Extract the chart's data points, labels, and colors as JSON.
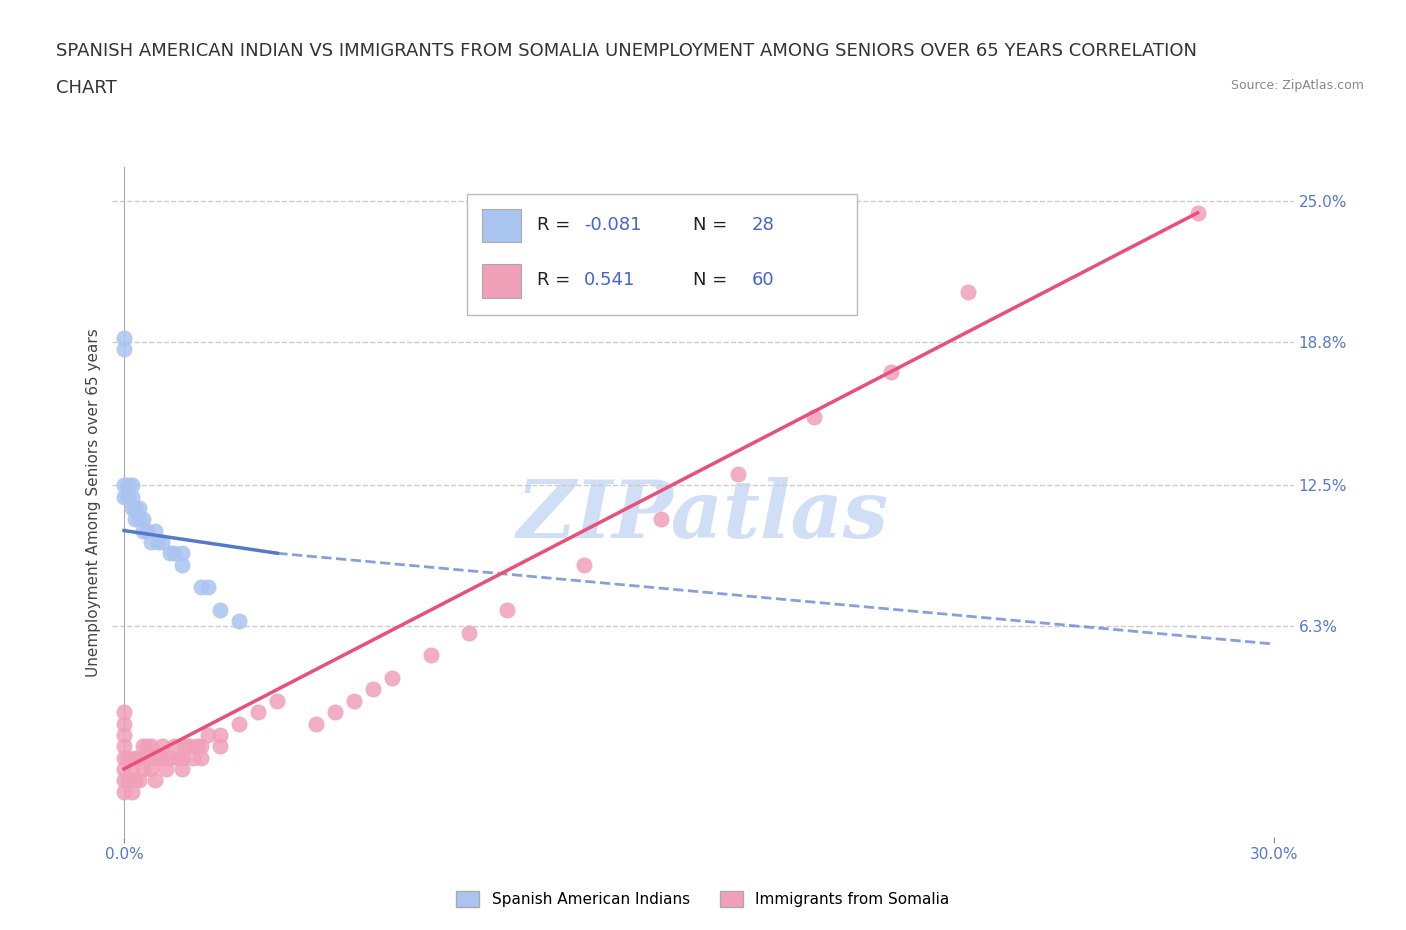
{
  "title_line1": "SPANISH AMERICAN INDIAN VS IMMIGRANTS FROM SOMALIA UNEMPLOYMENT AMONG SENIORS OVER 65 YEARS CORRELATION",
  "title_line2": "CHART",
  "source": "Source: ZipAtlas.com",
  "ylabel": "Unemployment Among Seniors over 65 years",
  "xlim": [
    -0.003,
    0.305
  ],
  "ylim": [
    -0.03,
    0.265
  ],
  "right_yticks": [
    0.0,
    0.063,
    0.125,
    0.188,
    0.25
  ],
  "right_yticklabels": [
    "",
    "6.3%",
    "12.5%",
    "18.8%",
    "25.0%"
  ],
  "series1_color": "#aac4f0",
  "series2_color": "#f0a0b8",
  "series1_label": "Spanish American Indians",
  "series2_label": "Immigrants from Somalia",
  "trend1_color": "#5577cc",
  "trend2_color": "#e8507a",
  "watermark_text": "ZIPatlas",
  "watermark_color": "#d0dff5",
  "grid_color": "#cccccc",
  "background_color": "#ffffff",
  "title_fontsize": 13,
  "axis_label_fontsize": 11,
  "tick_fontsize": 11,
  "tick_color": "#5577cc",
  "series1_x": [
    0.0,
    0.0,
    0.0,
    0.0,
    0.001,
    0.001,
    0.002,
    0.002,
    0.002,
    0.003,
    0.003,
    0.004,
    0.004,
    0.005,
    0.005,
    0.006,
    0.007,
    0.008,
    0.009,
    0.01,
    0.012,
    0.013,
    0.015,
    0.015,
    0.02,
    0.022,
    0.025,
    0.03
  ],
  "series1_y": [
    0.19,
    0.185,
    0.125,
    0.12,
    0.125,
    0.12,
    0.125,
    0.12,
    0.115,
    0.115,
    0.11,
    0.115,
    0.11,
    0.11,
    0.105,
    0.105,
    0.1,
    0.105,
    0.1,
    0.1,
    0.095,
    0.095,
    0.095,
    0.09,
    0.08,
    0.08,
    0.07,
    0.065
  ],
  "series2_x": [
    0.0,
    0.0,
    0.0,
    0.0,
    0.0,
    0.0,
    0.0,
    0.0,
    0.001,
    0.001,
    0.002,
    0.002,
    0.003,
    0.003,
    0.004,
    0.004,
    0.005,
    0.005,
    0.006,
    0.006,
    0.007,
    0.007,
    0.008,
    0.008,
    0.009,
    0.01,
    0.01,
    0.011,
    0.012,
    0.013,
    0.014,
    0.015,
    0.015,
    0.016,
    0.017,
    0.018,
    0.019,
    0.02,
    0.02,
    0.022,
    0.025,
    0.025,
    0.03,
    0.035,
    0.04,
    0.05,
    0.055,
    0.06,
    0.065,
    0.07,
    0.08,
    0.09,
    0.1,
    0.12,
    0.14,
    0.16,
    0.18,
    0.2,
    0.22,
    0.28
  ],
  "series2_y": [
    -0.01,
    -0.005,
    0.0,
    0.005,
    0.01,
    0.015,
    0.02,
    0.025,
    -0.005,
    0.005,
    -0.01,
    0.0,
    -0.005,
    0.005,
    -0.005,
    0.005,
    0.0,
    0.01,
    0.005,
    0.01,
    0.0,
    0.01,
    -0.005,
    0.005,
    0.005,
    0.005,
    0.01,
    0.0,
    0.005,
    0.01,
    0.005,
    0.0,
    0.005,
    0.01,
    0.01,
    0.005,
    0.01,
    0.005,
    0.01,
    0.015,
    0.01,
    0.015,
    0.02,
    0.025,
    0.03,
    0.02,
    0.025,
    0.03,
    0.035,
    0.04,
    0.05,
    0.06,
    0.07,
    0.09,
    0.11,
    0.13,
    0.155,
    0.175,
    0.21,
    0.245
  ],
  "trend1_start_x": 0.0,
  "trend1_start_y": 0.105,
  "trend1_end_x": 0.3,
  "trend1_end_y": 0.055,
  "trend2_start_x": 0.0,
  "trend2_start_y": 0.0,
  "trend2_end_x": 0.28,
  "trend2_end_y": 0.245
}
